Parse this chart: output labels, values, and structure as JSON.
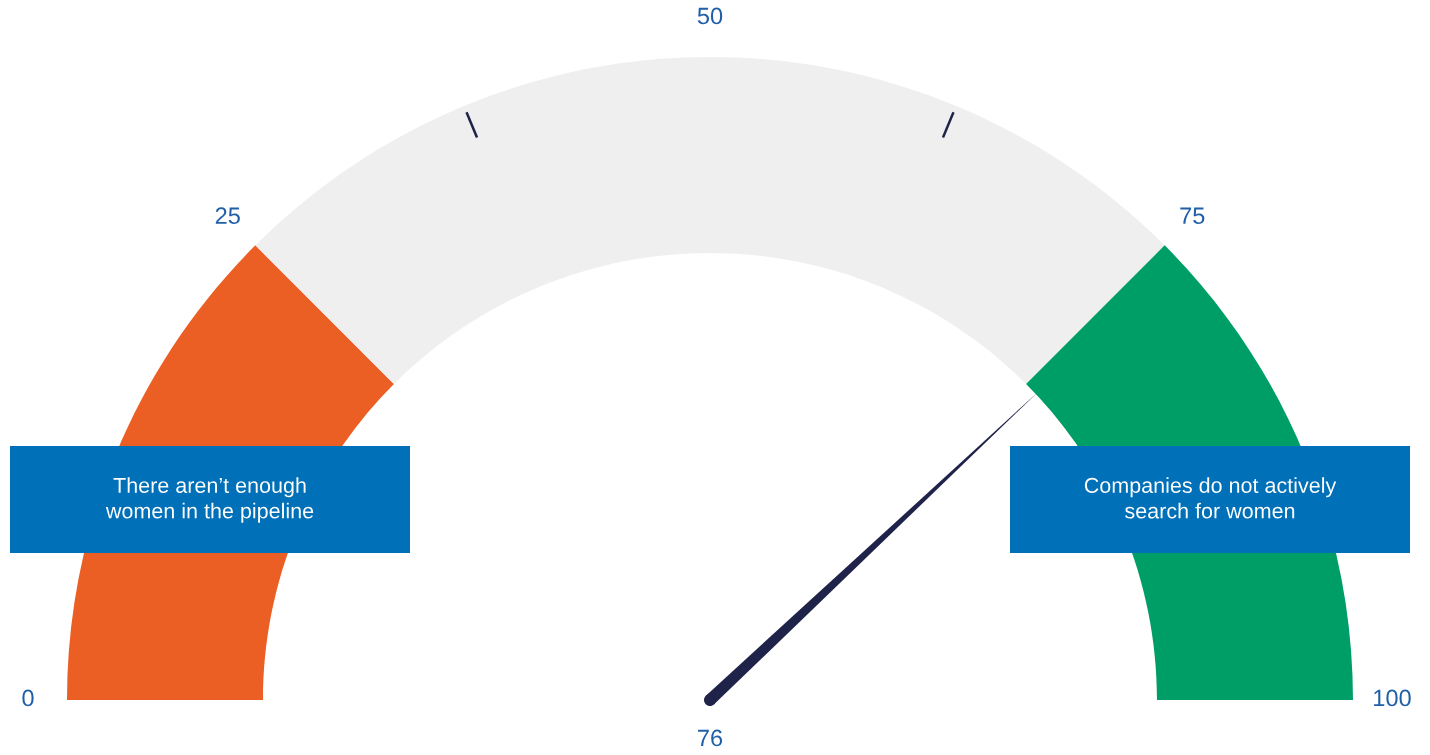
{
  "chart_data": {
    "type": "donut",
    "categories": [
      "There aren’t enough\nwomen in the pipeline",
      null,
      "Companies do not actively\nsearch for women"
    ],
    "values": [
      25,
      50,
      25
    ],
    "colors": [
      "#ec5f24",
      "#efefef",
      "#009e67"
    ],
    "needle": "Companies do not actively\nsearch for women",
    "annotations": [
      "0",
      "25",
      "50",
      "75",
      "100",
      "76"
    ]
  }
}
